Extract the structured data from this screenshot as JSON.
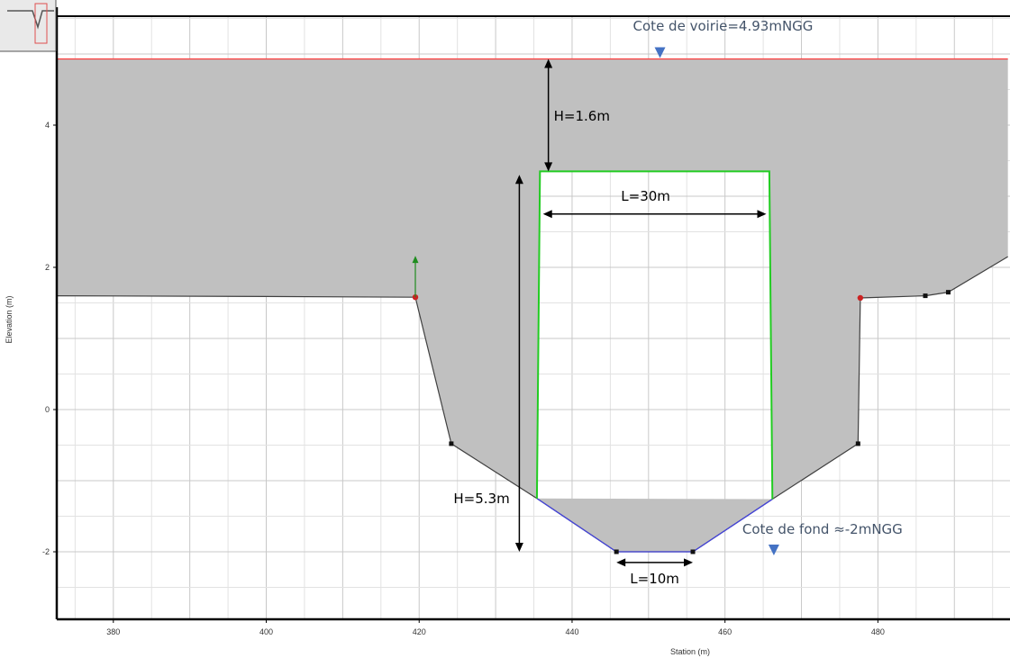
{
  "chart_data": {
    "type": "area",
    "title": "",
    "xlabel": "Station (m)",
    "ylabel": "Elevation (m)",
    "xlim": [
      372.6,
      497
    ],
    "ylim": [
      -2.9,
      5.5
    ],
    "xticks": [
      380,
      400,
      420,
      440,
      460,
      480
    ],
    "yticks": [
      4,
      2,
      0,
      -2
    ],
    "grid": true,
    "colors": {
      "fill": "#c0c0c0",
      "terrain": "#404040",
      "road": "#ff3b3b",
      "culvert": "#22cc22",
      "channel": "#4444dd",
      "arrow": "#000000",
      "marker_blue": "#4472c4",
      "bank_point": "#cc2222",
      "vector": "#1e8c1e"
    },
    "series": [
      {
        "type": "line",
        "points": [
          [
            372.6,
            1.6
          ],
          [
            400,
            1.59
          ],
          [
            419.5,
            1.58
          ],
          [
            424.2,
            -0.48
          ],
          [
            435.4,
            -1.25
          ],
          [
            445.8,
            -2.0
          ],
          [
            455.8,
            -2.0
          ],
          [
            466.2,
            -1.26
          ],
          [
            477.4,
            -0.48
          ],
          [
            477.7,
            1.57
          ],
          [
            486.2,
            1.6
          ],
          [
            489.2,
            1.65
          ],
          [
            497,
            2.15
          ]
        ]
      },
      {
        "type": "line",
        "points": [
          [
            372.6,
            4.93
          ],
          [
            497,
            4.93
          ]
        ]
      },
      {
        "type": "line",
        "points": [
          [
            435.4,
            -1.25
          ],
          [
            435.8,
            3.35
          ],
          [
            465.8,
            3.35
          ],
          [
            466.2,
            -1.26
          ]
        ]
      },
      {
        "type": "line",
        "points": [
          [
            435.4,
            -1.25
          ],
          [
            445.8,
            -2.0
          ],
          [
            455.8,
            -2.0
          ],
          [
            466.2,
            -1.26
          ]
        ]
      }
    ],
    "markers": [
      {
        "name": "bank-left",
        "x": 419.5,
        "y": 1.58,
        "kind": "red"
      },
      {
        "name": "bank-right",
        "x": 477.7,
        "y": 1.57,
        "kind": "red"
      },
      {
        "name": "vertex",
        "x": 424.2,
        "y": -0.48,
        "kind": "black"
      },
      {
        "name": "vertex",
        "x": 445.8,
        "y": -2.0,
        "kind": "black"
      },
      {
        "name": "vertex",
        "x": 455.8,
        "y": -2.0,
        "kind": "black"
      },
      {
        "name": "vertex",
        "x": 477.4,
        "y": -0.48,
        "kind": "black"
      },
      {
        "name": "vertex",
        "x": 486.2,
        "y": 1.6,
        "kind": "black"
      },
      {
        "name": "vertex",
        "x": 489.2,
        "y": 1.65,
        "kind": "black"
      }
    ],
    "annotations": [
      {
        "text": "Cote de voirie=4.93mNGG",
        "kind": "level",
        "x": 451.5,
        "y": 4.93
      },
      {
        "text": "H=1.6m",
        "kind": "vertical",
        "x": 436.9,
        "y_from": 4.93,
        "y_to": 3.35
      },
      {
        "text": "L=30m",
        "kind": "horizontal",
        "y": 2.75,
        "x_from": 436.2,
        "x_to": 465.4
      },
      {
        "text": "H=5.3m",
        "kind": "vertical",
        "x": 433.1,
        "y_from": 3.3,
        "y_to": -2.0
      },
      {
        "text": "L=10m",
        "kind": "horizontal",
        "y": -2.15,
        "x_from": 445.8,
        "x_to": 455.8
      },
      {
        "text": "Cote de fond ≈-2mNGG",
        "kind": "level",
        "x": 465.8,
        "y": -2.0
      }
    ]
  }
}
